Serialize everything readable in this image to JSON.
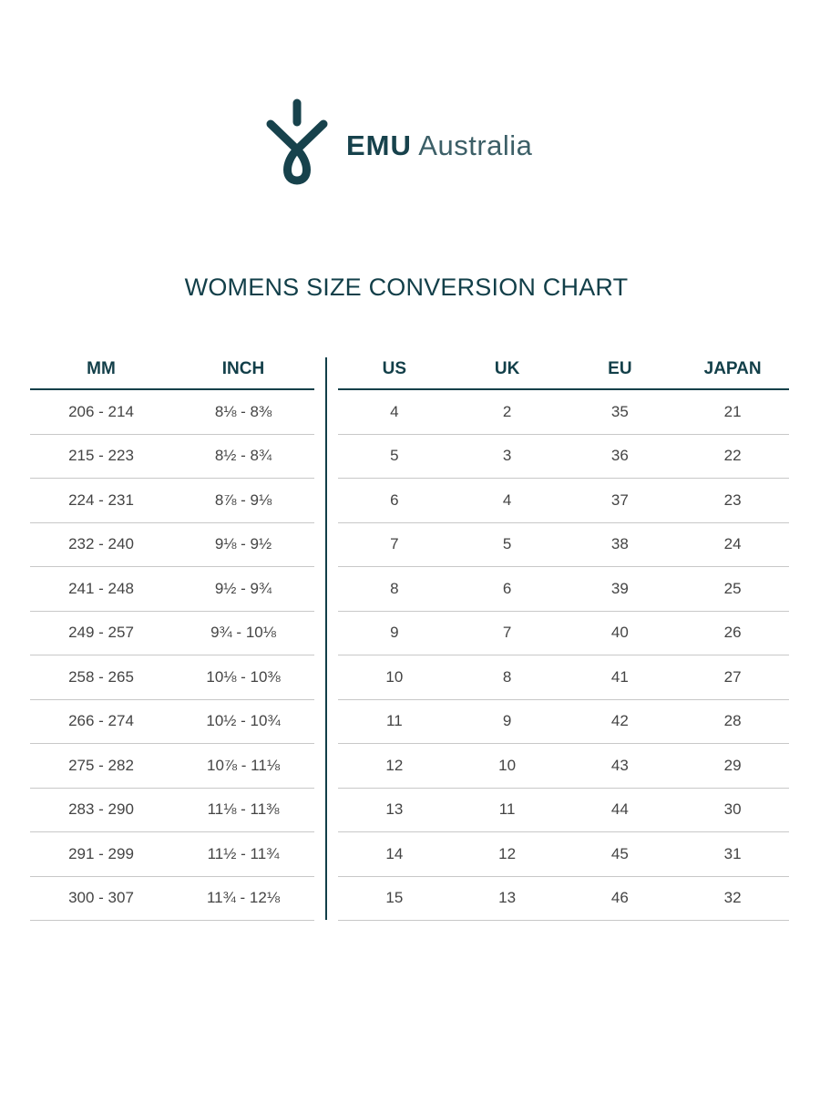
{
  "logo": {
    "brand_bold": "EMU",
    "brand_light": "Australia",
    "color": "#17424c"
  },
  "title": "WOMENS SIZE CONVERSION CHART",
  "left_table": {
    "headers": [
      "MM",
      "INCH"
    ],
    "rows": [
      [
        "206  -  214",
        "8⅛  -  8⅜"
      ],
      [
        "215  -  223",
        "8½  -  8¾"
      ],
      [
        "224  -  231",
        "8⅞  -  9⅛"
      ],
      [
        "232  -  240",
        "9⅛  -  9½"
      ],
      [
        "241  -  248",
        "9½  -  9¾"
      ],
      [
        "249  -  257",
        "9¾  -  10⅛"
      ],
      [
        "258  -  265",
        "10⅛  -  10⅜"
      ],
      [
        "266  -  274",
        "10½  -  10¾"
      ],
      [
        "275  -  282",
        "10⅞  -  11⅛"
      ],
      [
        "283  -  290",
        "11⅛  -  11⅜"
      ],
      [
        "291  -  299",
        "11½  -  11¾"
      ],
      [
        "300  -  307",
        "11¾  -  12⅛"
      ]
    ]
  },
  "right_table": {
    "headers": [
      "US",
      "UK",
      "EU",
      "JAPAN"
    ],
    "rows": [
      [
        "4",
        "2",
        "35",
        "21"
      ],
      [
        "5",
        "3",
        "36",
        "22"
      ],
      [
        "6",
        "4",
        "37",
        "23"
      ],
      [
        "7",
        "5",
        "38",
        "24"
      ],
      [
        "8",
        "6",
        "39",
        "25"
      ],
      [
        "9",
        "7",
        "40",
        "26"
      ],
      [
        "10",
        "8",
        "41",
        "27"
      ],
      [
        "11",
        "9",
        "42",
        "28"
      ],
      [
        "12",
        "10",
        "43",
        "29"
      ],
      [
        "13",
        "11",
        "44",
        "30"
      ],
      [
        "14",
        "12",
        "45",
        "31"
      ],
      [
        "15",
        "13",
        "46",
        "32"
      ]
    ]
  }
}
